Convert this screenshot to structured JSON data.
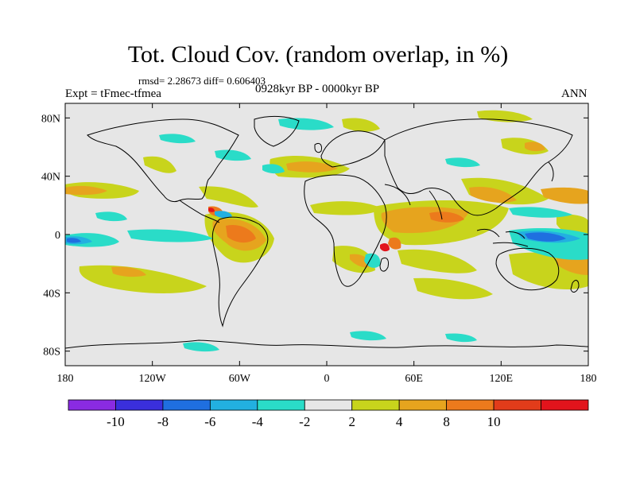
{
  "header": {
    "title": "Tot. Cloud Cov. (random overlap, in %)",
    "stats": "rmsd= 2.28673 diff= 0.606403",
    "experiment": "Expt = tFmec-tfmea",
    "period": "0928kyr BP - 0000kyr BP",
    "season": "ANN"
  },
  "axes": {
    "x_ticks": [
      {
        "value": -180,
        "label": "180"
      },
      {
        "value": -120,
        "label": "120W"
      },
      {
        "value": -60,
        "label": "60W"
      },
      {
        "value": 0,
        "label": "0"
      },
      {
        "value": 60,
        "label": "60E"
      },
      {
        "value": 120,
        "label": "120E"
      },
      {
        "value": 180,
        "label": "180"
      }
    ],
    "y_ticks": [
      {
        "value": 80,
        "label": "80N"
      },
      {
        "value": 40,
        "label": "40N"
      },
      {
        "value": 0,
        "label": "0"
      },
      {
        "value": -40,
        "label": "40S"
      },
      {
        "value": -80,
        "label": "80S"
      }
    ],
    "xlim": [
      -180,
      180
    ],
    "ylim": [
      -90,
      90
    ]
  },
  "colorbar": {
    "colors": [
      "#8a2be2",
      "#3a2fdc",
      "#1f6fe0",
      "#22b0e0",
      "#2adcc8",
      "#e6e6e6",
      "#c8d41c",
      "#e6a41e",
      "#ec7a1c",
      "#e23c1a",
      "#e2141c"
    ],
    "labels": [
      {
        "boundary": 1,
        "text": "-10"
      },
      {
        "boundary": 2,
        "text": "-8"
      },
      {
        "boundary": 3,
        "text": "-6"
      },
      {
        "boundary": 4,
        "text": "-4"
      },
      {
        "boundary": 5,
        "text": "-2"
      },
      {
        "boundary": 6,
        "text": "2"
      },
      {
        "boundary": 7,
        "text": "4"
      },
      {
        "boundary": 8,
        "text": "8"
      },
      {
        "boundary": 9,
        "text": "10"
      }
    ]
  },
  "colors": {
    "background": "#e6e6e6",
    "pos_small": "#c8d41c",
    "pos_mid": "#e6a41e",
    "pos_large": "#ec7a1c",
    "pos_max": "#e2141c",
    "neg_small": "#2adcc8",
    "neg_mid": "#22b0e0",
    "neg_large": "#1f6fe0"
  }
}
